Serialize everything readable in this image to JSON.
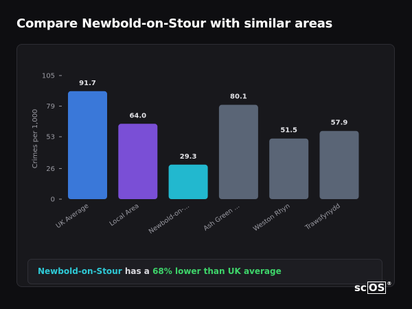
{
  "header": {
    "title": "Compare Newbold-on-Stour with similar areas"
  },
  "summary": {
    "area_name": "Newbold-on-Stour",
    "middle": " has a ",
    "difference": "68% lower than UK average"
  },
  "brand": {
    "logo_left": "sc",
    "logo_boxed": "OS",
    "logo_mark": "®"
  },
  "colors": {
    "uk": "#3a78d9",
    "local": "#7a4fd6",
    "highlight": "#22b8cf",
    "neighbour": "#5a6576",
    "axis_text": "#9a9aa2",
    "value_text": "#e2e2e6"
  },
  "chart_data": {
    "type": "bar",
    "title": "",
    "xlabel": "",
    "ylabel": "Crimes per 1,000",
    "ylim": [
      0,
      105
    ],
    "yticks": [
      0,
      26,
      53,
      79,
      105
    ],
    "grid": false,
    "categories": [
      "UK Average",
      "Local Area",
      "Newbold-on-...",
      "Ash Green ...",
      "Weston Rhyn",
      "Trawsfynydd"
    ],
    "values": [
      91.7,
      64.0,
      29.3,
      80.1,
      51.5,
      57.9
    ],
    "value_labels": [
      "91.7",
      "64.0",
      "29.3",
      "80.1",
      "51.5",
      "57.9"
    ],
    "bar_colors": [
      "#3a78d9",
      "#7a4fd6",
      "#22b8cf",
      "#5a6576",
      "#5a6576",
      "#5a6576"
    ]
  }
}
